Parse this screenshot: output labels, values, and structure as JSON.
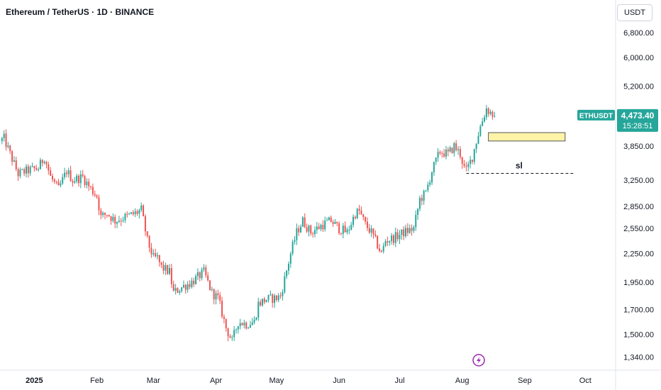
{
  "header": {
    "title": "Ethereum / TetherUS · 1D · BINANCE",
    "currency_button": "USDT"
  },
  "colors": {
    "up": "#26a69a",
    "down": "#ef5350",
    "badge": "#26a69a",
    "zone_fill": "#fff3a8",
    "zone_border": "#2a2e39"
  },
  "icons": {
    "bottom_marker": "lightning-icon"
  },
  "chart_data": {
    "type": "candlestick",
    "symbol_badge": "ETHUSDT",
    "last_price": 4473.4,
    "last_price_label": "4,473.40",
    "countdown_label": "15:28:51",
    "y_scale": "log",
    "ylim": [
      1255,
      8000
    ],
    "xlim": [
      "2024-12-15",
      "2025-10-16"
    ],
    "y_ticks": [
      {
        "value": 6800,
        "label": "6,800.00"
      },
      {
        "value": 6000,
        "label": "6,000.00"
      },
      {
        "value": 5200,
        "label": "5,200.00"
      },
      {
        "value": 3850,
        "label": "3,850.00"
      },
      {
        "value": 3250,
        "label": "3,250.00"
      },
      {
        "value": 2850,
        "label": "2,850.00"
      },
      {
        "value": 2550,
        "label": "2,550.00"
      },
      {
        "value": 2250,
        "label": "2,250.00"
      },
      {
        "value": 1950,
        "label": "1,950.00"
      },
      {
        "value": 1700,
        "label": "1,700.00"
      },
      {
        "value": 1500,
        "label": "1,500.00"
      },
      {
        "value": 1340,
        "label": "1,340.00"
      }
    ],
    "x_ticks": [
      {
        "date": "2025-01-01",
        "label": "2025",
        "bold": true
      },
      {
        "date": "2025-02-01",
        "label": "Feb"
      },
      {
        "date": "2025-03-01",
        "label": "Mar"
      },
      {
        "date": "2025-04-01",
        "label": "Apr"
      },
      {
        "date": "2025-05-01",
        "label": "May"
      },
      {
        "date": "2025-06-01",
        "label": "Jun"
      },
      {
        "date": "2025-07-01",
        "label": "Jul"
      },
      {
        "date": "2025-08-01",
        "label": "Aug"
      },
      {
        "date": "2025-09-01",
        "label": "Sep"
      },
      {
        "date": "2025-10-01",
        "label": "Oct"
      }
    ],
    "price_path": [
      [
        "2024-12-15",
        3950
      ],
      [
        "2024-12-17",
        4000
      ],
      [
        "2024-12-20",
        3700
      ],
      [
        "2024-12-24",
        3350
      ],
      [
        "2024-12-28",
        3400
      ],
      [
        "2025-01-03",
        3450
      ],
      [
        "2025-01-06",
        3650
      ],
      [
        "2025-01-09",
        3300
      ],
      [
        "2025-01-13",
        3100
      ],
      [
        "2025-01-17",
        3400
      ],
      [
        "2025-01-20",
        3250
      ],
      [
        "2025-01-25",
        3300
      ],
      [
        "2025-01-28",
        3150
      ],
      [
        "2025-02-01",
        3000
      ],
      [
        "2025-02-03",
        2700
      ],
      [
        "2025-02-06",
        2750
      ],
      [
        "2025-02-10",
        2650
      ],
      [
        "2025-02-15",
        2700
      ],
      [
        "2025-02-20",
        2750
      ],
      [
        "2025-02-23",
        2800
      ],
      [
        "2025-02-26",
        2400
      ],
      [
        "2025-03-01",
        2200
      ],
      [
        "2025-03-03",
        2200
      ],
      [
        "2025-03-05",
        2100
      ],
      [
        "2025-03-09",
        2050
      ],
      [
        "2025-03-11",
        1850
      ],
      [
        "2025-03-15",
        1900
      ],
      [
        "2025-03-20",
        1950
      ],
      [
        "2025-03-26",
        2050
      ],
      [
        "2025-03-30",
        1850
      ],
      [
        "2025-04-02",
        1800
      ],
      [
        "2025-04-06",
        1550
      ],
      [
        "2025-04-09",
        1450
      ],
      [
        "2025-04-12",
        1600
      ],
      [
        "2025-04-16",
        1580
      ],
      [
        "2025-04-20",
        1600
      ],
      [
        "2025-04-22",
        1750
      ],
      [
        "2025-04-26",
        1790
      ],
      [
        "2025-05-01",
        1800
      ],
      [
        "2025-05-03",
        1820
      ],
      [
        "2025-05-08",
        2250
      ],
      [
        "2025-05-11",
        2500
      ],
      [
        "2025-05-14",
        2650
      ],
      [
        "2025-05-18",
        2500
      ],
      [
        "2025-05-24",
        2600
      ],
      [
        "2025-05-28",
        2650
      ],
      [
        "2025-06-01",
        2550
      ],
      [
        "2025-06-05",
        2500
      ],
      [
        "2025-06-09",
        2750
      ],
      [
        "2025-06-11",
        2780
      ],
      [
        "2025-06-14",
        2600
      ],
      [
        "2025-06-17",
        2500
      ],
      [
        "2025-06-22",
        2250
      ],
      [
        "2025-06-24",
        2400
      ],
      [
        "2025-06-28",
        2430
      ],
      [
        "2025-07-03",
        2500
      ],
      [
        "2025-07-08",
        2550
      ],
      [
        "2025-07-11",
        2950
      ],
      [
        "2025-07-14",
        3050
      ],
      [
        "2025-07-17",
        3400
      ],
      [
        "2025-07-21",
        3750
      ],
      [
        "2025-07-25",
        3700
      ],
      [
        "2025-07-28",
        3850
      ],
      [
        "2025-07-31",
        3700
      ],
      [
        "2025-08-02",
        3450
      ],
      [
        "2025-08-03",
        3400
      ],
      [
        "2025-08-06",
        3650
      ],
      [
        "2025-08-08",
        3950
      ],
      [
        "2025-08-10",
        4250
      ],
      [
        "2025-08-13",
        4650
      ],
      [
        "2025-08-15",
        4550
      ],
      [
        "2025-08-17",
        4473
      ]
    ],
    "annotations": [
      {
        "type": "zone",
        "x_start": "2025-08-14",
        "x_end": "2025-09-21",
        "y_low": 3950,
        "y_high": 4120
      },
      {
        "type": "dashed_line",
        "label": "sl",
        "x_start": "2025-08-03",
        "x_end": "2025-09-25",
        "y": 3360
      }
    ]
  }
}
